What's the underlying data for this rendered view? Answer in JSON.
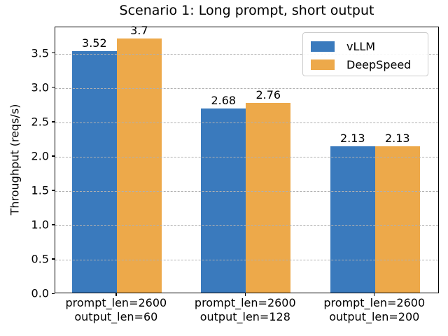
{
  "chart_data": {
    "type": "bar",
    "title": "Scenario 1: Long prompt, short output",
    "ylabel": "Throughput (reqs/s)",
    "xlabel": "",
    "categories": [
      [
        "prompt_len=2600",
        "output_len=60"
      ],
      [
        "prompt_len=2600",
        "output_len=128"
      ],
      [
        "prompt_len=2600",
        "output_len=200"
      ]
    ],
    "series": [
      {
        "name": "vLLM",
        "color": "#3a7abd",
        "values": [
          3.52,
          2.68,
          2.13
        ],
        "value_labels": [
          "3.52",
          "2.68",
          "2.13"
        ]
      },
      {
        "name": "DeepSpeed",
        "color": "#eda94a",
        "values": [
          3.7,
          2.76,
          2.13
        ],
        "value_labels": [
          "3.7",
          "2.76",
          "2.13"
        ]
      }
    ],
    "yticks": [
      0.0,
      0.5,
      1.0,
      1.5,
      2.0,
      2.5,
      3.0,
      3.5
    ],
    "ytick_labels": [
      "0.0",
      "0.5",
      "1.0",
      "1.5",
      "2.0",
      "2.5",
      "3.0",
      "3.5"
    ],
    "ylim": [
      0,
      3.885
    ],
    "grid": "horizontal-dashed",
    "grid_color": "#b0b0b0",
    "legend_position": "upper right"
  }
}
